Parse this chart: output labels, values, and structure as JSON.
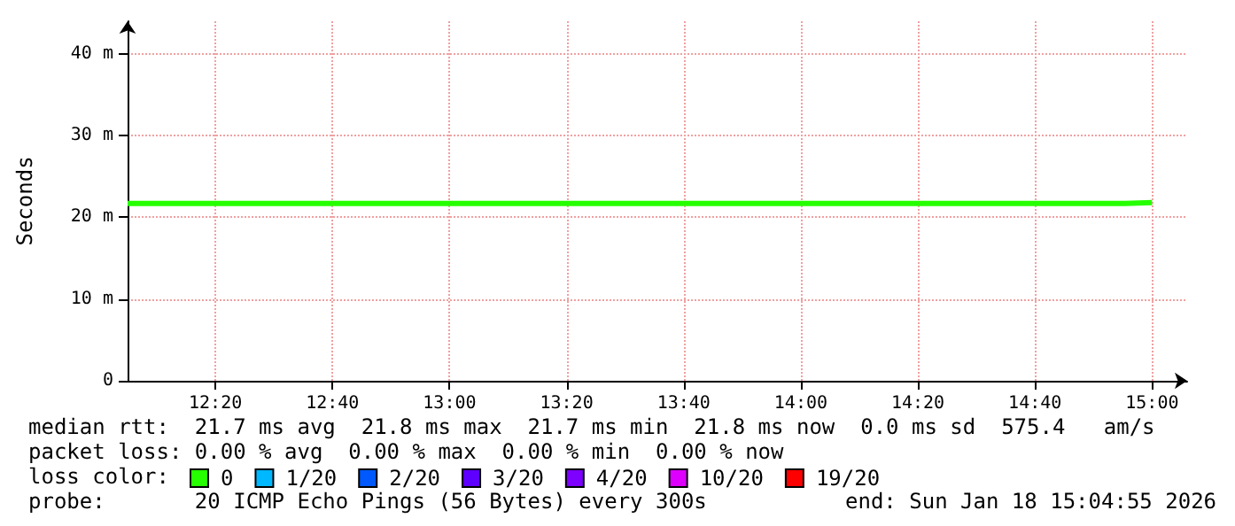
{
  "chart_data": {
    "type": "step",
    "ylabel": "Seconds",
    "legend_title": "loss color:",
    "x": [
      "2026-01-18T12:05",
      "2026-01-18T12:10",
      "2026-01-18T12:15",
      "2026-01-18T12:20",
      "2026-01-18T12:25",
      "2026-01-18T12:30",
      "2026-01-18T12:35",
      "2026-01-18T12:40",
      "2026-01-18T12:45",
      "2026-01-18T12:50",
      "2026-01-18T12:55",
      "2026-01-18T13:00",
      "2026-01-18T13:05",
      "2026-01-18T13:10",
      "2026-01-18T13:15",
      "2026-01-18T13:20",
      "2026-01-18T13:25",
      "2026-01-18T13:30",
      "2026-01-18T13:35",
      "2026-01-18T13:40",
      "2026-01-18T13:45",
      "2026-01-18T13:50",
      "2026-01-18T13:55",
      "2026-01-18T14:00",
      "2026-01-18T14:05",
      "2026-01-18T14:10",
      "2026-01-18T14:15",
      "2026-01-18T14:20",
      "2026-01-18T14:25",
      "2026-01-18T14:30",
      "2026-01-18T14:35",
      "2026-01-18T14:40",
      "2026-01-18T14:45",
      "2026-01-18T14:50",
      "2026-01-18T14:55",
      "2026-01-18T15:00"
    ],
    "series": [
      {
        "name": "0",
        "color": "#26ff00",
        "values": [
          21.7,
          21.7,
          21.7,
          21.7,
          21.7,
          21.7,
          21.7,
          21.7,
          21.7,
          21.7,
          21.7,
          21.7,
          21.7,
          21.7,
          21.7,
          21.7,
          21.7,
          21.7,
          21.7,
          21.7,
          21.7,
          21.7,
          21.7,
          21.7,
          21.7,
          21.7,
          21.7,
          21.7,
          21.7,
          21.7,
          21.7,
          21.7,
          21.7,
          21.7,
          21.8,
          21.8
        ]
      },
      {
        "name": "1/20",
        "color": "#00b8ff",
        "values": [
          null,
          null,
          null,
          null,
          null,
          null,
          null,
          null,
          null,
          null,
          null,
          null,
          null,
          null,
          null,
          null,
          null,
          null,
          null,
          null,
          null,
          null,
          null,
          null,
          null,
          null,
          null,
          null,
          null,
          null,
          null,
          null,
          null,
          null,
          null,
          null
        ]
      },
      {
        "name": "2/20",
        "color": "#0059ff",
        "values": [
          null,
          null,
          null,
          null,
          null,
          null,
          null,
          null,
          null,
          null,
          null,
          null,
          null,
          null,
          null,
          null,
          null,
          null,
          null,
          null,
          null,
          null,
          null,
          null,
          null,
          null,
          null,
          null,
          null,
          null,
          null,
          null,
          null,
          null,
          null,
          null
        ]
      },
      {
        "name": "3/20",
        "color": "#5e00ff",
        "values": [
          null,
          null,
          null,
          null,
          null,
          null,
          null,
          null,
          null,
          null,
          null,
          null,
          null,
          null,
          null,
          null,
          null,
          null,
          null,
          null,
          null,
          null,
          null,
          null,
          null,
          null,
          null,
          null,
          null,
          null,
          null,
          null,
          null,
          null,
          null,
          null
        ]
      },
      {
        "name": "4/20",
        "color": "#7e00ff",
        "values": [
          null,
          null,
          null,
          null,
          null,
          null,
          null,
          null,
          null,
          null,
          null,
          null,
          null,
          null,
          null,
          null,
          null,
          null,
          null,
          null,
          null,
          null,
          null,
          null,
          null,
          null,
          null,
          null,
          null,
          null,
          null,
          null,
          null,
          null,
          null,
          null
        ]
      },
      {
        "name": "10/20",
        "color": "#dd00ff",
        "values": [
          null,
          null,
          null,
          null,
          null,
          null,
          null,
          null,
          null,
          null,
          null,
          null,
          null,
          null,
          null,
          null,
          null,
          null,
          null,
          null,
          null,
          null,
          null,
          null,
          null,
          null,
          null,
          null,
          null,
          null,
          null,
          null,
          null,
          null,
          null,
          null
        ]
      },
      {
        "name": "19/20",
        "color": "#ff0000",
        "values": [
          null,
          null,
          null,
          null,
          null,
          null,
          null,
          null,
          null,
          null,
          null,
          null,
          null,
          null,
          null,
          null,
          null,
          null,
          null,
          null,
          null,
          null,
          null,
          null,
          null,
          null,
          null,
          null,
          null,
          null,
          null,
          null,
          null,
          null,
          null,
          null
        ]
      }
    ],
    "xlim": [
      "2026-01-18T12:05",
      "2026-01-18T15:06"
    ],
    "xticks": [
      {
        "value": "2026-01-18T12:20",
        "label": "12:20"
      },
      {
        "value": "2026-01-18T12:40",
        "label": "12:40"
      },
      {
        "value": "2026-01-18T13:00",
        "label": "13:00"
      },
      {
        "value": "2026-01-18T13:20",
        "label": "13:20"
      },
      {
        "value": "2026-01-18T13:40",
        "label": "13:40"
      },
      {
        "value": "2026-01-18T14:00",
        "label": "14:00"
      },
      {
        "value": "2026-01-18T14:20",
        "label": "14:20"
      },
      {
        "value": "2026-01-18T14:40",
        "label": "14:40"
      },
      {
        "value": "2026-01-18T15:00",
        "label": "15:00"
      }
    ],
    "ylim": [
      0,
      44
    ],
    "yticks": [
      0,
      {
        "value": 10,
        "label": "10 m"
      },
      {
        "value": 20,
        "label": "20 m"
      },
      {
        "value": 30,
        "label": "30 m"
      },
      {
        "value": 40,
        "label": "40 m"
      }
    ],
    "grid": true,
    "legend": "bottom",
    "marker": "none",
    "line_style": "solid",
    "annotations": [
      "median rtt:  21.7 ms avg  21.8 ms max  21.7 ms min  21.8 ms now  0.0 ms sd  575.4   am/s",
      "packet loss: 0.00 % avg  0.00 % max  0.00 % min  0.00 % now",
      "probe:       20 ICMP Echo Pings (56 Bytes) every 300s",
      "end: Sun Jan 18 15:04:55 2026"
    ]
  }
}
